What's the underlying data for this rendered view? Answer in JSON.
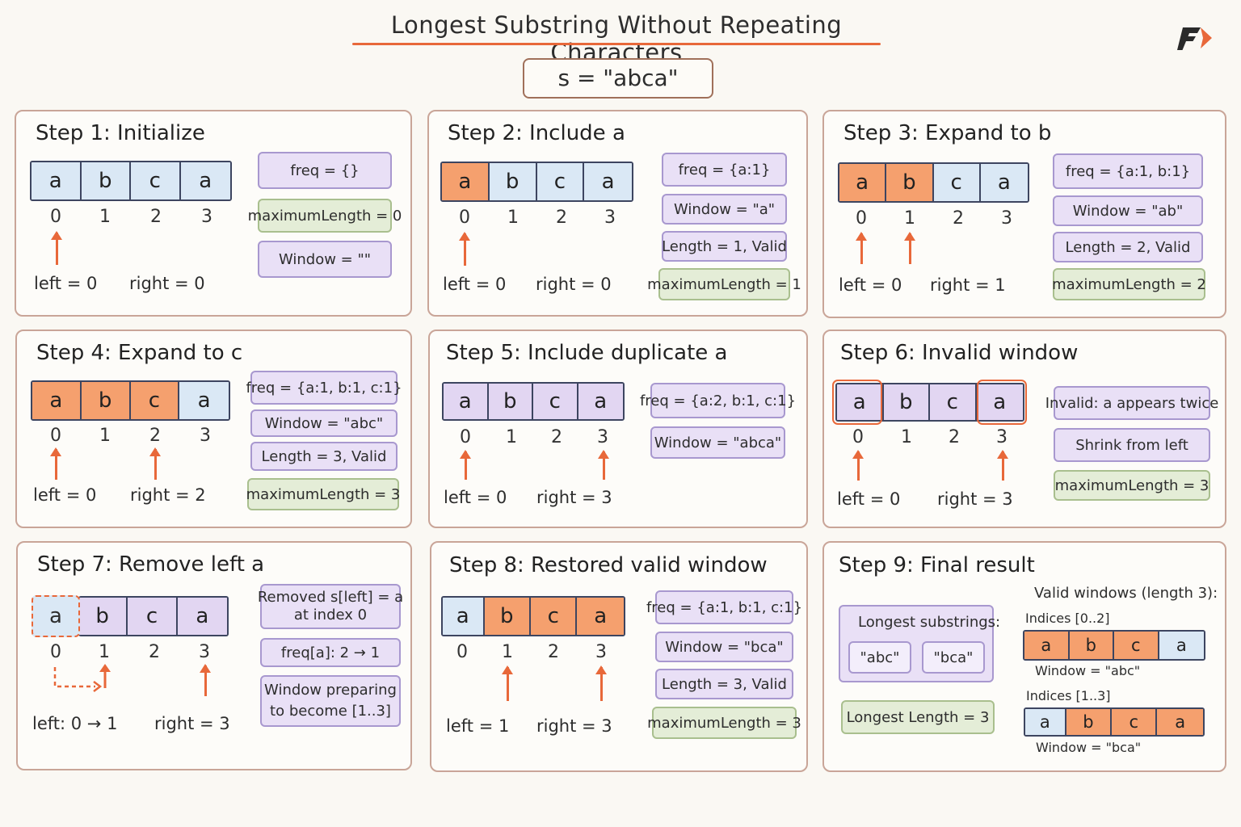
{
  "title": "Longest Substring Without Repeating Characters",
  "input_label": "s  =  \"abca\"",
  "chars": [
    "a",
    "b",
    "c",
    "a"
  ],
  "indices": [
    "0",
    "1",
    "2",
    "3"
  ],
  "colors": {
    "accent": "#e8683a",
    "window_cell": "#f5a06e",
    "idle_cell": "#dae8f5",
    "invalid_cell": "#e2d6f2",
    "tag_purple": "#e9e0f6",
    "tag_green": "#e4edd7"
  },
  "steps": [
    {
      "title": "Step 1:  Initialize",
      "left": "left = 0",
      "right": "right = 0",
      "tags": [
        "freq = {}",
        "maximumLength = 0",
        "Window  =  \"\""
      ]
    },
    {
      "title": "Step 2:  Include  a",
      "left": "left = 0",
      "right": "right  =  0",
      "tags": [
        "freq = {a:1}",
        "Window  =  \"a\"",
        "Length  =  1,  Valid",
        "maximumLength = 1"
      ]
    },
    {
      "title": "Step 3:  Expand  to  b",
      "left": "left = 0",
      "right": "right  =  1",
      "tags": [
        "freq  =  {a:1,  b:1}",
        "Window  =  \"ab\"",
        "Length  =  2,  Valid",
        "maximumLength  =  2"
      ]
    },
    {
      "title": "Step 4:  Expand  to  c",
      "left": "left = 0",
      "right": "right  =  2",
      "tags": [
        "freq = {a:1, b:1, c:1}",
        "Window  =  \"abc\"",
        "Length  =  3,  Valid",
        "maximumLength  =  3"
      ]
    },
    {
      "title": "Step  5:  Include  duplicate  a",
      "left": "left = 0",
      "right": "right  =  3",
      "tags": [
        "freq = {a:2, b:1, c:1}",
        "Window  =  \"abca\""
      ]
    },
    {
      "title": "Step  6:  Invalid  window",
      "left": "left = 0",
      "right": "right  =  3",
      "tags": [
        "Invalid:  a  appears  twice",
        "Shrink  from  left",
        "maximumLength  =  3"
      ]
    },
    {
      "title": "Step  7:  Remove  left  a",
      "left": "left:  0 → 1",
      "right": "right  =  3",
      "tags": [
        "Removed  s[left]  =  a",
        "at  index  0",
        "freq[a]:  2 → 1",
        "Window  preparing",
        "to  become  [1..3]"
      ]
    },
    {
      "title": "Step  8:  Restored  valid  window",
      "left": "left  =  1",
      "right": "right  =  3",
      "tags": [
        "freq = {a:1, b:1, c:1}",
        "Window  =  \"bca\"",
        "Length  =  3,  Valid",
        "maximumLength  =  3"
      ]
    },
    {
      "title": "Step  9:  Final  result",
      "longest_label": "Longest  substrings:",
      "results": [
        "\"abc\"",
        "\"bca\""
      ],
      "longest_length": "Longest  Length  =  3",
      "valid_heading": "Valid  windows  (length  3):",
      "indices_a": "Indices  [0..2]",
      "window_a": "Window  =  \"abc\"",
      "indices_b": "Indices  [1..3]",
      "window_b": "Window  =  \"bca\""
    }
  ]
}
